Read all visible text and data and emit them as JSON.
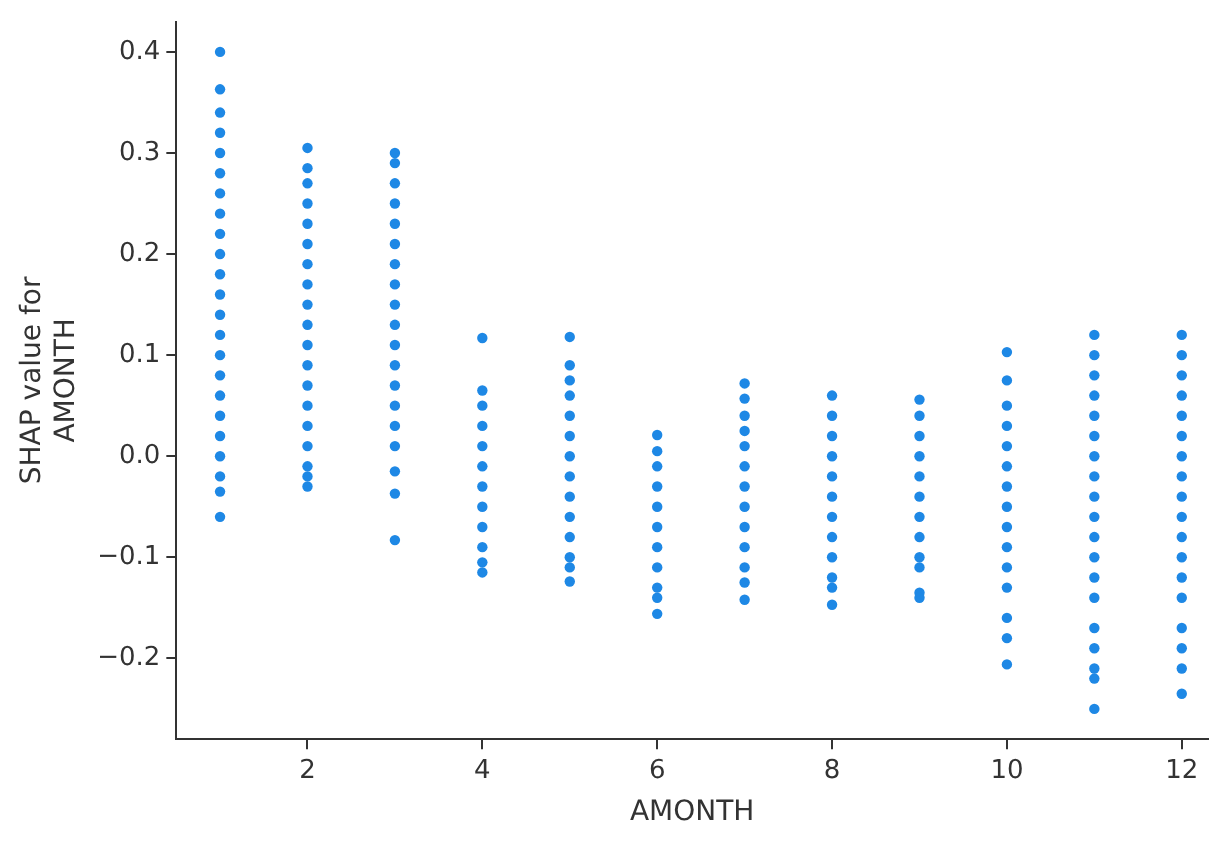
{
  "chart_data": {
    "type": "scatter",
    "xlabel": "AMONTH",
    "ylabel": "SHAP value for\nAMONTH",
    "xlim": [
      0.5,
      12.3
    ],
    "ylim": [
      -0.28,
      0.43
    ],
    "xticks": [
      2,
      4,
      6,
      8,
      10,
      12
    ],
    "yticks": [
      -0.2,
      -0.1,
      {
        "value": 0,
        "label": "0.0"
      },
      0.1,
      0.2,
      0.3,
      0.4
    ],
    "grid": false,
    "legend": false,
    "marker": "circle",
    "series": [
      {
        "color": "#1e88e5",
        "x": [
          1,
          1,
          1,
          1,
          1,
          1,
          1,
          1,
          1,
          1,
          1,
          1,
          1,
          1,
          1,
          1,
          1,
          1,
          1,
          1,
          1,
          1,
          1,
          2,
          2,
          2,
          2,
          2,
          2,
          2,
          2,
          2,
          2,
          2,
          2,
          2,
          2,
          2,
          2,
          2,
          2,
          2,
          3,
          3,
          3,
          3,
          3,
          3,
          3,
          3,
          3,
          3,
          3,
          3,
          3,
          3,
          3,
          3,
          3,
          3,
          3,
          4,
          4,
          4,
          4,
          4,
          4,
          4,
          4,
          4,
          4,
          4,
          4,
          5,
          5,
          5,
          5,
          5,
          5,
          5,
          5,
          5,
          5,
          5,
          5,
          5,
          5,
          6,
          6,
          6,
          6,
          6,
          6,
          6,
          6,
          6,
          6,
          6,
          7,
          7,
          7,
          7,
          7,
          7,
          7,
          7,
          7,
          7,
          7,
          7,
          7,
          8,
          8,
          8,
          8,
          8,
          8,
          8,
          8,
          8,
          8,
          8,
          8,
          9,
          9,
          9,
          9,
          9,
          9,
          9,
          9,
          9,
          9,
          9,
          9,
          10,
          10,
          10,
          10,
          10,
          10,
          10,
          10,
          10,
          10,
          10,
          10,
          10,
          10,
          10,
          11,
          11,
          11,
          11,
          11,
          11,
          11,
          11,
          11,
          11,
          11,
          11,
          11,
          11,
          11,
          11,
          11,
          11,
          11,
          12,
          12,
          12,
          12,
          12,
          12,
          12,
          12,
          12,
          12,
          12,
          12,
          12,
          12,
          12,
          12,
          12,
          12
        ],
        "values": [
          0.4,
          0.363,
          0.34,
          0.32,
          0.3,
          0.28,
          0.26,
          0.24,
          0.22,
          0.2,
          0.18,
          0.16,
          0.14,
          0.12,
          0.1,
          0.08,
          0.06,
          0.04,
          0.02,
          0.0,
          -0.02,
          -0.035,
          -0.06,
          0.305,
          0.285,
          0.27,
          0.25,
          0.23,
          0.21,
          0.19,
          0.17,
          0.15,
          0.13,
          0.11,
          0.09,
          0.07,
          0.05,
          0.03,
          0.01,
          -0.01,
          -0.02,
          -0.03,
          0.3,
          0.29,
          0.27,
          0.25,
          0.23,
          0.21,
          0.19,
          0.17,
          0.15,
          0.13,
          0.11,
          0.09,
          0.07,
          0.05,
          0.03,
          0.01,
          -0.015,
          -0.037,
          -0.083,
          0.117,
          0.065,
          0.05,
          0.03,
          0.01,
          -0.01,
          -0.03,
          -0.05,
          -0.07,
          -0.09,
          -0.105,
          -0.115,
          0.118,
          0.09,
          0.075,
          0.06,
          0.04,
          0.02,
          0.0,
          -0.02,
          -0.04,
          -0.06,
          -0.08,
          -0.1,
          -0.11,
          -0.124,
          0.021,
          0.005,
          -0.01,
          -0.03,
          -0.05,
          -0.07,
          -0.09,
          -0.11,
          -0.13,
          -0.14,
          -0.156,
          0.072,
          0.057,
          0.04,
          0.025,
          0.01,
          -0.01,
          -0.03,
          -0.05,
          -0.07,
          -0.09,
          -0.11,
          -0.125,
          -0.142,
          0.06,
          0.04,
          0.02,
          0.0,
          -0.02,
          -0.04,
          -0.06,
          -0.08,
          -0.1,
          -0.12,
          -0.13,
          -0.147,
          0.056,
          0.04,
          0.02,
          0.0,
          -0.02,
          -0.04,
          -0.06,
          -0.08,
          -0.1,
          -0.11,
          -0.135,
          -0.14,
          0.103,
          0.075,
          0.05,
          0.03,
          0.01,
          -0.01,
          -0.03,
          -0.05,
          -0.07,
          -0.09,
          -0.11,
          -0.13,
          -0.16,
          -0.18,
          -0.206,
          0.12,
          0.1,
          0.08,
          0.06,
          0.04,
          0.02,
          0.0,
          -0.02,
          -0.04,
          -0.06,
          -0.08,
          -0.1,
          -0.12,
          -0.14,
          -0.17,
          -0.19,
          -0.21,
          -0.22,
          -0.25,
          0.12,
          0.1,
          0.08,
          0.06,
          0.04,
          0.02,
          0.0,
          -0.02,
          -0.04,
          -0.06,
          -0.08,
          -0.1,
          -0.12,
          -0.14,
          -0.17,
          -0.19,
          -0.21,
          -0.235
        ]
      }
    ]
  }
}
